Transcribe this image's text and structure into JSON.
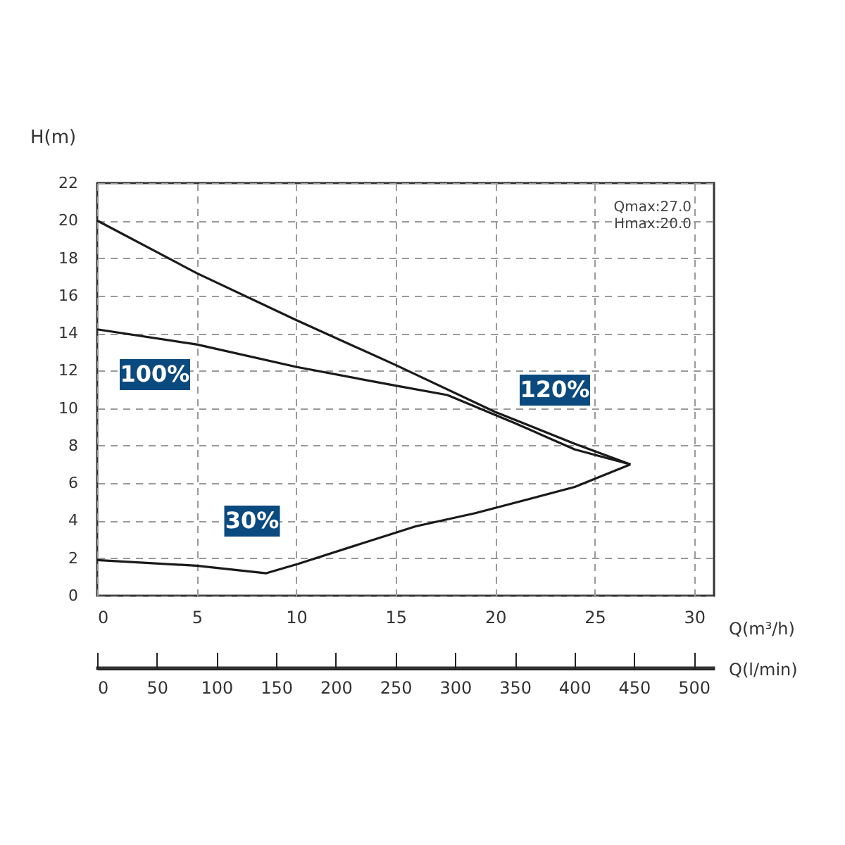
{
  "chart_data": {
    "type": "line",
    "xlabel": "Q(m³/h)",
    "ylabel": "H(m)",
    "x2label": "Q(l/min)",
    "xlim": [
      0,
      31
    ],
    "xticks": [
      0,
      5,
      10,
      15,
      20,
      25,
      30
    ],
    "ylim": [
      0,
      22
    ],
    "yticks": [
      0,
      2,
      4,
      6,
      8,
      10,
      12,
      14,
      16,
      18,
      20,
      22
    ],
    "x2lim": [
      0,
      517
    ],
    "x2ticks": [
      0,
      50,
      100,
      150,
      200,
      250,
      300,
      350,
      400,
      450,
      500
    ],
    "grid": true,
    "marker": "none",
    "line_style": "solid",
    "series": [
      {
        "name": "120%",
        "color": "#1a1a1a",
        "x": [
          0,
          5,
          10,
          15,
          20,
          24,
          26.8
        ],
        "values": [
          20.0,
          17.2,
          14.7,
          12.3,
          9.8,
          8.1,
          7.0
        ]
      },
      {
        "name": "100%",
        "color": "#1a1a1a",
        "x": [
          0,
          5,
          10,
          15,
          17.6,
          21,
          24,
          26.8
        ],
        "values": [
          14.2,
          13.4,
          12.2,
          11.2,
          10.7,
          9.2,
          7.8,
          7.0
        ]
      },
      {
        "name": "30%",
        "color": "#1a1a1a",
        "x": [
          0,
          5,
          8.5,
          10.1,
          16,
          19,
          24,
          26.8
        ],
        "values": [
          1.9,
          1.6,
          1.2,
          1.7,
          3.7,
          4.4,
          5.8,
          7.0
        ]
      }
    ],
    "annotations": [
      "Qmax:27.0",
      "Hmax:20.0"
    ]
  }
}
